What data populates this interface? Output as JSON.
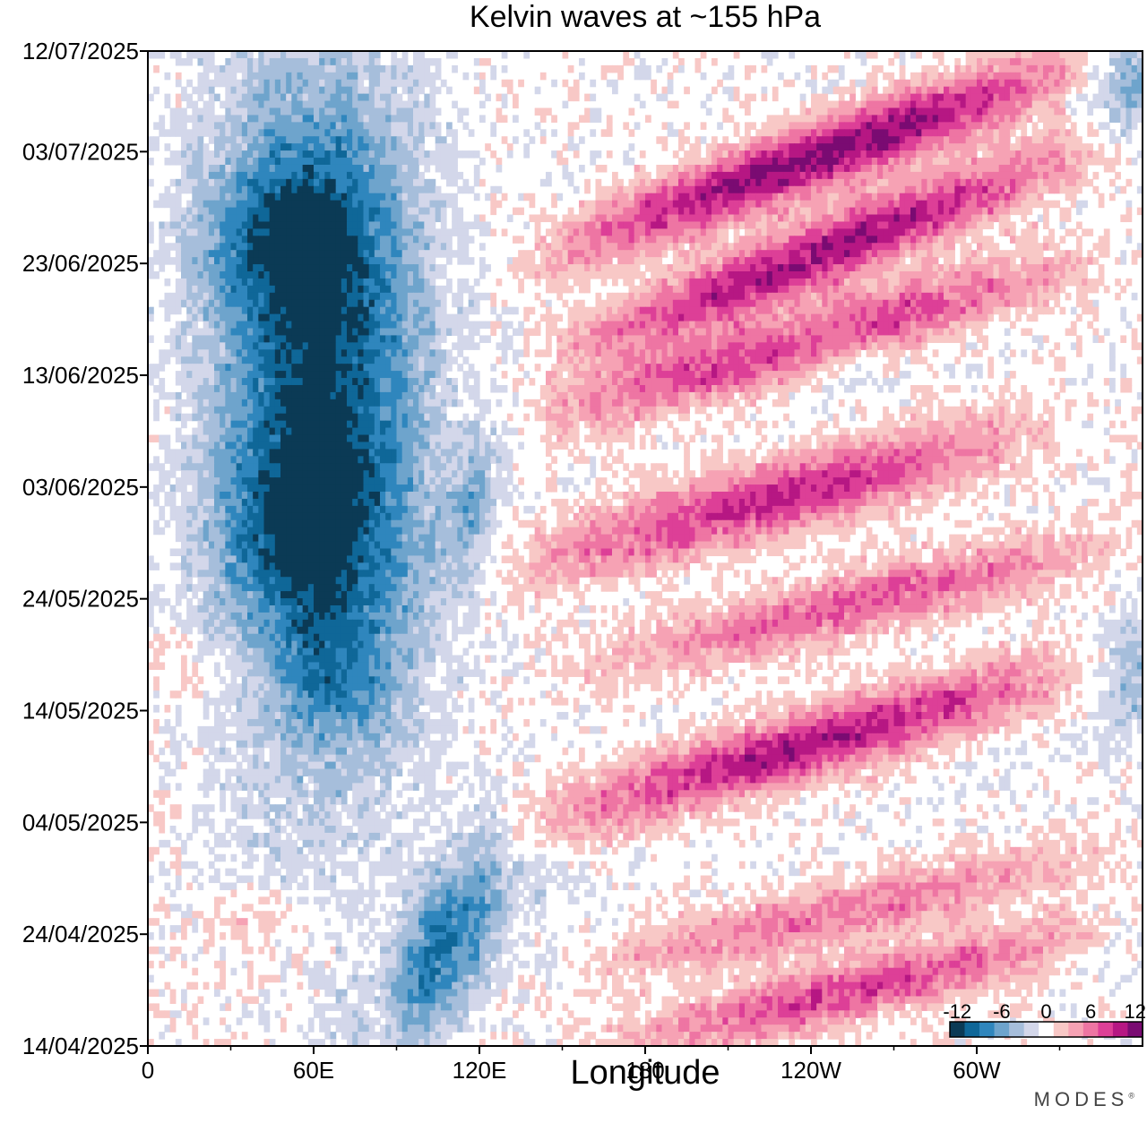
{
  "chart_data": {
    "type": "heatmap",
    "title": "Kelvin waves at ~155 hPa",
    "xlabel": "Longitude",
    "ylabel": "",
    "x_ticks": [
      "0",
      "60E",
      "120E",
      "180",
      "120W",
      "60W"
    ],
    "x_tick_values": [
      0,
      60,
      120,
      180,
      240,
      300
    ],
    "xlim": [
      0,
      360
    ],
    "y_ticks": [
      "12/07/2025",
      "03/07/2025",
      "23/06/2025",
      "13/06/2025",
      "03/06/2025",
      "24/05/2025",
      "14/05/2025",
      "04/05/2025",
      "24/04/2025",
      "14/04/2025"
    ],
    "y_tick_values": [
      89,
      80,
      70,
      60,
      50,
      40,
      30,
      20,
      10,
      0
    ],
    "ylim": [
      0,
      89
    ],
    "y_unit_note": "days",
    "colorbar": {
      "tick_labels": [
        "-12",
        "-6",
        "0",
        "6",
        "12"
      ],
      "tick_values": [
        -12,
        -6,
        0,
        6,
        12
      ],
      "levels": [
        -12,
        -10,
        -8,
        -6,
        -4,
        -2,
        0,
        2,
        4,
        6,
        8,
        10,
        12
      ],
      "colors": [
        "#0b3a55",
        "#0f6798",
        "#2f86bd",
        "#6ea4cc",
        "#a6bedb",
        "#d3d7ea",
        "#ffffff",
        "#f8c8c6",
        "#f6a2b4",
        "#ee75a3",
        "#dd3f97",
        "#b61783",
        "#7a0b72"
      ]
    },
    "features": [
      {
        "sign": "negative",
        "shape": "band",
        "lon0": 60,
        "lon1": 65,
        "t0": 25,
        "t1": 89,
        "width": 52,
        "amp": -12
      },
      {
        "sign": "negative",
        "shape": "blob",
        "lon": 50,
        "t": 72,
        "rl": 22,
        "rt": 5,
        "amp": -5
      },
      {
        "sign": "negative",
        "shape": "blob",
        "lon": 55,
        "t": 46,
        "rl": 22,
        "rt": 5,
        "amp": -4
      },
      {
        "sign": "negative",
        "shape": "blob",
        "lon": 70,
        "t": 33,
        "rl": 14,
        "rt": 4,
        "amp": -3
      },
      {
        "sign": "negative",
        "shape": "band",
        "lon0": 85,
        "lon1": 130,
        "t0": 3,
        "t1": 15,
        "width": 30,
        "amp": -9
      },
      {
        "sign": "negative",
        "shape": "band",
        "lon0": 110,
        "lon1": 125,
        "t0": 45,
        "t1": 52,
        "width": 22,
        "amp": -5
      },
      {
        "sign": "positive",
        "shape": "band",
        "lon0": 145,
        "lon1": 340,
        "t0": 71,
        "t1": 88,
        "width": 14,
        "amp": 12
      },
      {
        "sign": "positive",
        "shape": "band",
        "lon0": 150,
        "lon1": 340,
        "t0": 62,
        "t1": 80,
        "width": 14,
        "amp": 11
      },
      {
        "sign": "positive",
        "shape": "band",
        "lon0": 140,
        "lon1": 340,
        "t0": 56,
        "t1": 70,
        "width": 13,
        "amp": 9
      },
      {
        "sign": "positive",
        "shape": "band",
        "lon0": 135,
        "lon1": 320,
        "t0": 43,
        "t1": 55,
        "width": 15,
        "amp": 9
      },
      {
        "sign": "positive",
        "shape": "band",
        "lon0": 160,
        "lon1": 350,
        "t0": 34,
        "t1": 45,
        "width": 13,
        "amp": 7
      },
      {
        "sign": "positive",
        "shape": "band",
        "lon0": 140,
        "lon1": 340,
        "t0": 20,
        "t1": 34,
        "width": 14,
        "amp": 10
      },
      {
        "sign": "positive",
        "shape": "band",
        "lon0": 160,
        "lon1": 345,
        "t0": 7,
        "t1": 17,
        "width": 12,
        "amp": 6
      },
      {
        "sign": "positive",
        "shape": "band",
        "lon0": 170,
        "lon1": 340,
        "t0": 0,
        "t1": 10,
        "width": 12,
        "amp": 8
      },
      {
        "sign": "negative",
        "shape": "blob",
        "lon": 355,
        "t": 86,
        "rl": 12,
        "rt": 3,
        "amp": -5
      },
      {
        "sign": "negative",
        "shape": "blob",
        "lon": 355,
        "t": 33,
        "rl": 12,
        "rt": 4,
        "amp": -4
      },
      {
        "sign": "negative",
        "shape": "blob",
        "lon": 250,
        "t": 62,
        "rl": 14,
        "rt": 2,
        "amp": -3
      },
      {
        "sign": "positive",
        "shape": "blob",
        "lon": 40,
        "t": 11,
        "rl": 15,
        "rt": 2,
        "amp": 2
      },
      {
        "sign": "positive",
        "shape": "blob",
        "lon": 20,
        "t": 34,
        "rl": 15,
        "rt": 2,
        "amp": 2
      }
    ]
  },
  "brand": {
    "name": "MODES",
    "mark": "®"
  }
}
